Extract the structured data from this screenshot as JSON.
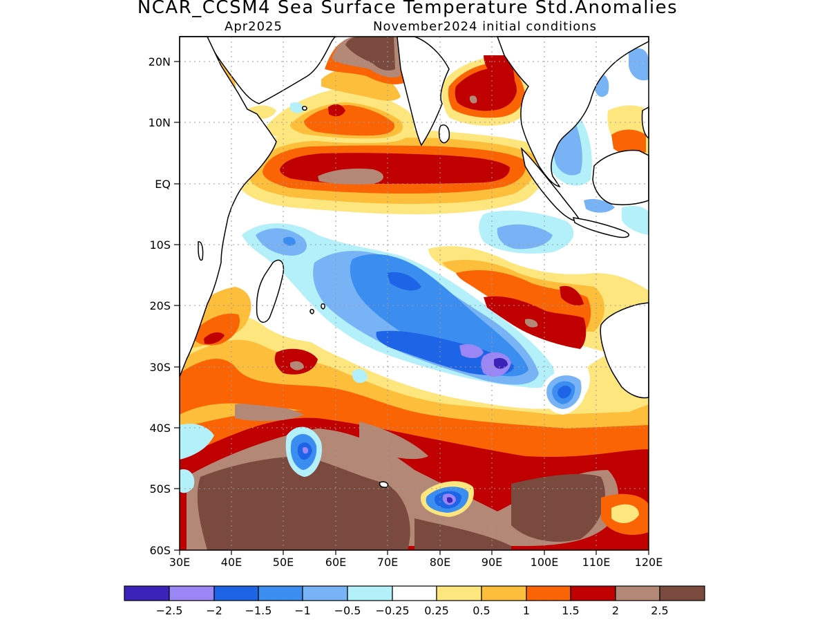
{
  "title": "NCAR_CCSM4 Sea Surface Temperature Std.Anomalies",
  "subtitle_left": "Apr2025",
  "subtitle_right": "November2024 initial conditions",
  "lat_labels": [
    "20N",
    "10N",
    "EQ",
    "10S",
    "20S",
    "30S",
    "40S",
    "50S",
    "60S"
  ],
  "lon_labels": [
    "30E",
    "40E",
    "50E",
    "60E",
    "70E",
    "80E",
    "90E",
    "100E",
    "110E",
    "120E"
  ],
  "colorbar": {
    "colors": [
      "#3b22b8",
      "#9b86f5",
      "#1e64e6",
      "#3b8ef0",
      "#78b4f5",
      "#b4f0fa",
      "#ffffff",
      "#fde67e",
      "#fdbe3c",
      "#fa6405",
      "#c00000",
      "#b48877",
      "#7a4a3e"
    ],
    "labels": [
      "−2.5",
      "−2",
      "−1.5",
      "−1",
      "−0.5",
      "−0.25",
      "0.25",
      "0.5",
      "1",
      "1.5",
      "2",
      "2.5"
    ]
  },
  "chart_data": {
    "type": "heatmap",
    "title": "NCAR_CCSM4 Sea Surface Temperature Std.Anomalies",
    "subtitle": [
      "Apr2025",
      "November2024 initial conditions"
    ],
    "x_range": [
      30,
      120
    ],
    "y_range": [
      -60,
      24
    ],
    "x_ticks": [
      30,
      40,
      50,
      60,
      70,
      80,
      90,
      100,
      110,
      120
    ],
    "y_ticks": [
      20,
      10,
      0,
      -10,
      -20,
      -30,
      -40,
      -50,
      -60
    ],
    "contour_levels": [
      -2.5,
      -2,
      -1.5,
      -1,
      -0.5,
      -0.25,
      0.25,
      0.5,
      1,
      1.5,
      2,
      2.5
    ],
    "grid": "dotted",
    "legend": "bottom"
  }
}
